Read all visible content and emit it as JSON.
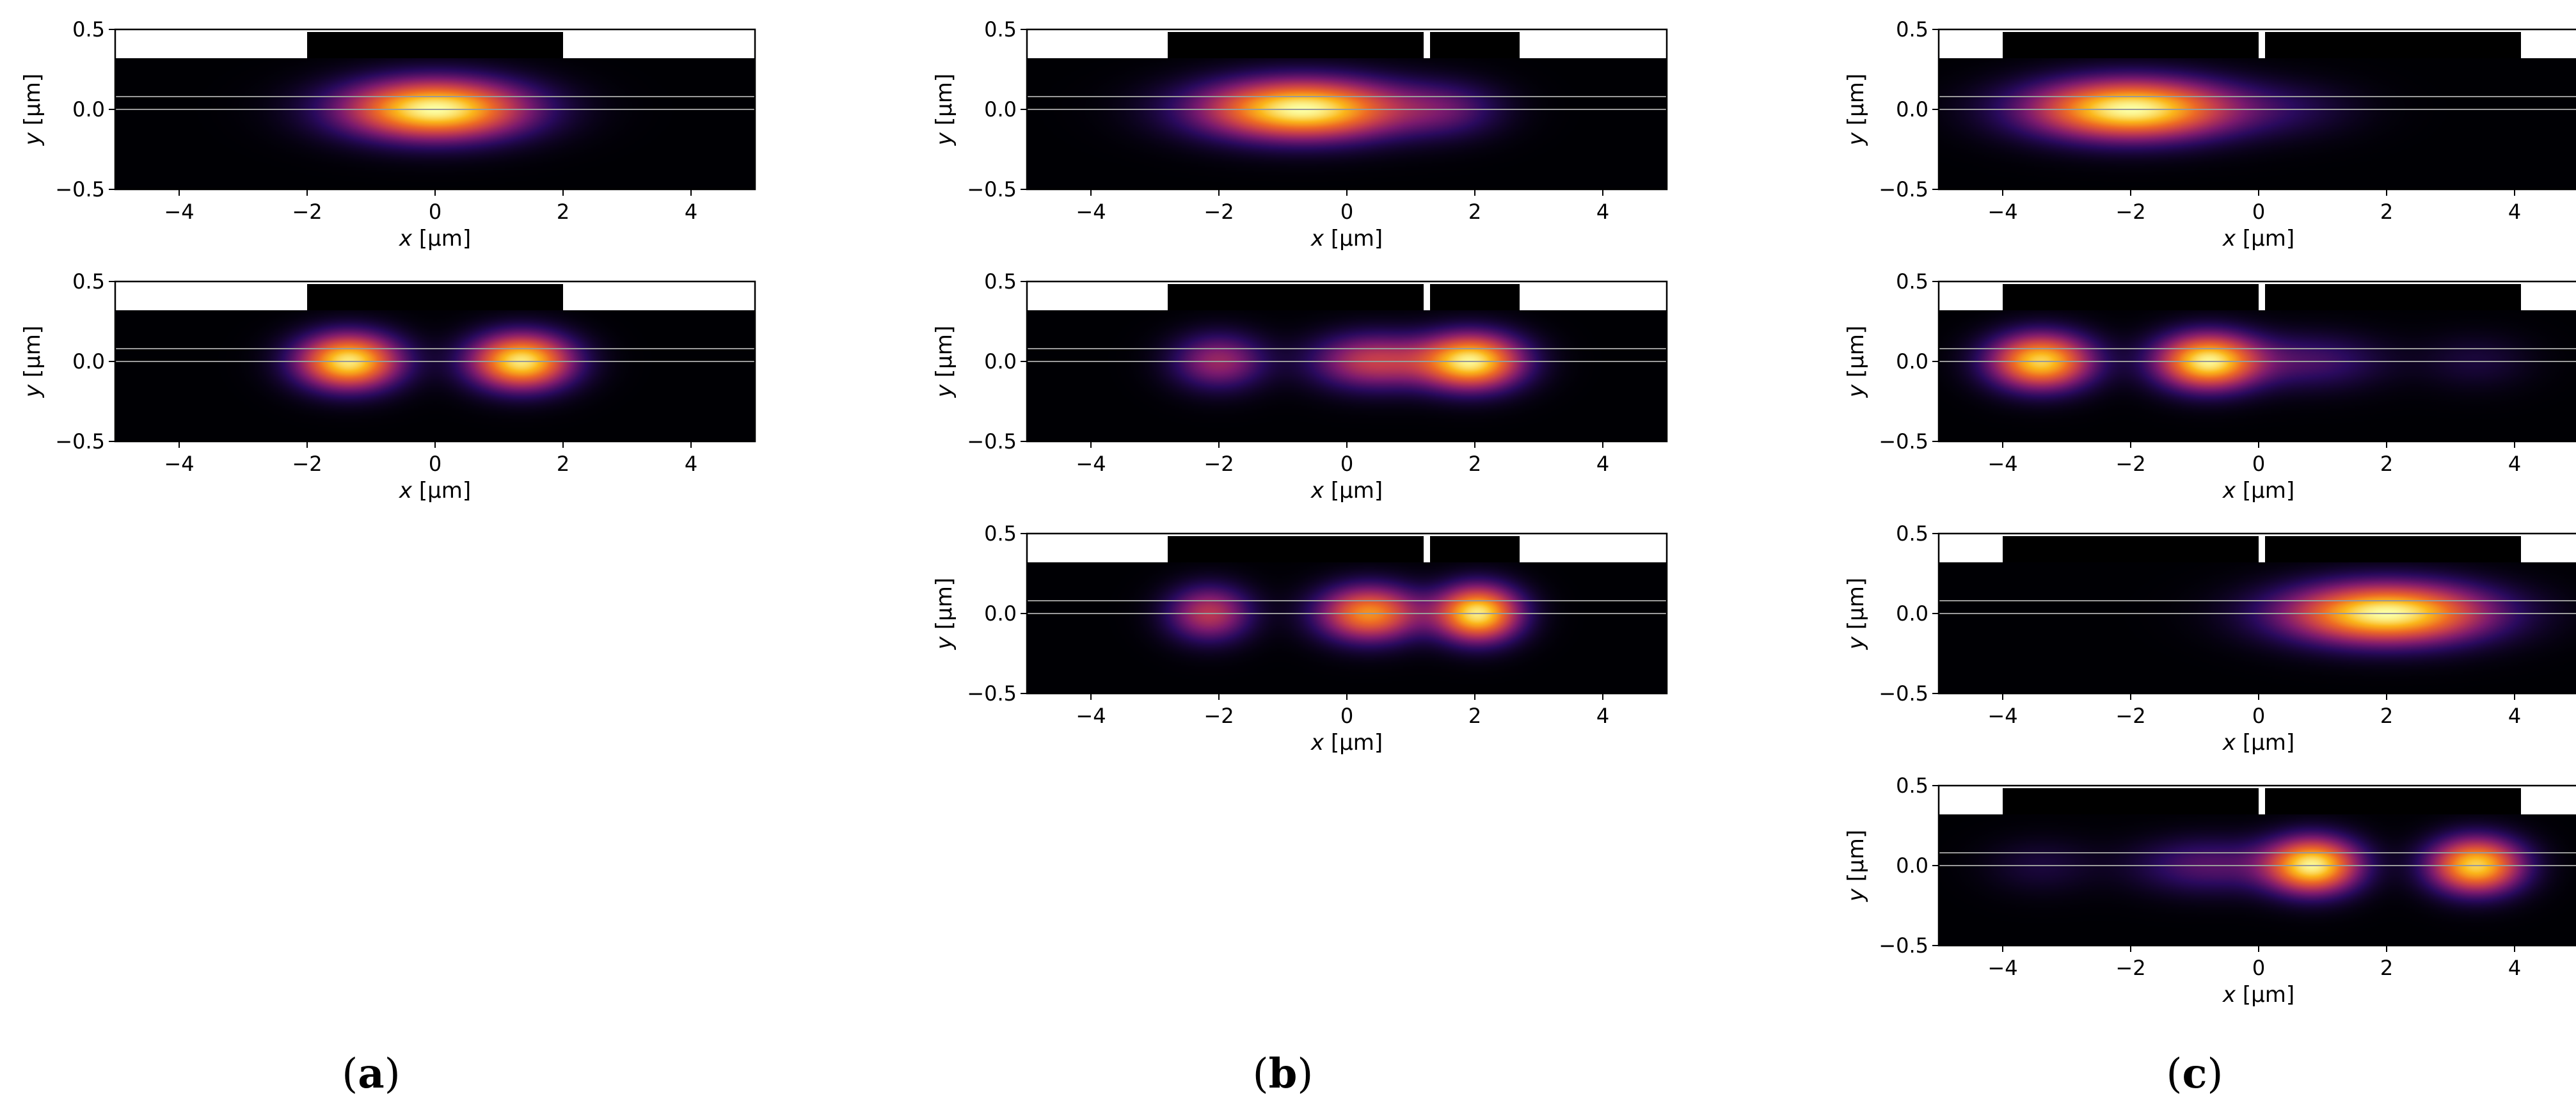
{
  "colors": {
    "background": "#000000",
    "cladding": "#ffffff",
    "guide_line": "#9a9a9a",
    "colormap": [
      "#000004",
      "#2a0a5e",
      "#7b1a6e",
      "#c13a50",
      "#ed6925",
      "#fbb61a",
      "#fcffa4"
    ]
  },
  "axes": {
    "xlim": [
      -5,
      5
    ],
    "ylim": [
      -0.5,
      0.5
    ],
    "xticks": [
      -4,
      -2,
      0,
      2,
      4
    ],
    "xtick_labels": [
      "−4",
      "−2",
      "0",
      "2",
      "4"
    ],
    "yticks": [
      0.5,
      0.0,
      -0.5
    ],
    "ytick_labels": [
      "0.5",
      "0.0",
      "−0.5"
    ],
    "xlabel_var": "x",
    "xlabel_unit": " [µm]",
    "ylabel_var": "y",
    "ylabel_unit": " [µm]",
    "core_lines_y": [
      0.08,
      0.0
    ],
    "top_strip_bottom_y": 0.32
  },
  "panel_labels": [
    "(a)",
    "(b)",
    "(c)"
  ],
  "chart_data": [
    {
      "type": "heatmap",
      "panel": "a",
      "column": 0,
      "row": 0,
      "ridges": [
        [
          -2,
          2
        ]
      ],
      "spots": [
        {
          "x": 0,
          "y": 0,
          "amp": 1.0,
          "sx": 1.0,
          "sy": 0.13
        }
      ]
    },
    {
      "type": "heatmap",
      "panel": "a",
      "column": 0,
      "row": 1,
      "ridges": [
        [
          -2,
          2
        ]
      ],
      "spots": [
        {
          "x": -1.35,
          "y": 0,
          "amp": 0.95,
          "sx": 0.55,
          "sy": 0.12
        },
        {
          "x": 1.35,
          "y": 0,
          "amp": 0.95,
          "sx": 0.55,
          "sy": 0.12
        }
      ]
    },
    {
      "type": "heatmap",
      "panel": "b",
      "column": 1,
      "row": 0,
      "ridges": [
        [
          -2.8,
          1.2
        ],
        [
          1.3,
          2.7
        ]
      ],
      "spots": [
        {
          "x": -0.7,
          "y": 0,
          "amp": 1.0,
          "sx": 1.1,
          "sy": 0.13
        },
        {
          "x": 1.6,
          "y": 0,
          "amp": 0.2,
          "sx": 0.6,
          "sy": 0.12
        }
      ]
    },
    {
      "type": "heatmap",
      "panel": "b",
      "column": 1,
      "row": 1,
      "ridges": [
        [
          -2.8,
          1.2
        ],
        [
          1.3,
          2.7
        ]
      ],
      "spots": [
        {
          "x": -2.0,
          "y": 0,
          "amp": 0.4,
          "sx": 0.5,
          "sy": 0.12
        },
        {
          "x": 0.4,
          "y": 0,
          "amp": 0.5,
          "sx": 0.65,
          "sy": 0.12
        },
        {
          "x": 1.95,
          "y": 0,
          "amp": 0.95,
          "sx": 0.55,
          "sy": 0.12
        }
      ]
    },
    {
      "type": "heatmap",
      "panel": "b",
      "column": 1,
      "row": 2,
      "ridges": [
        [
          -2.8,
          1.2
        ],
        [
          1.3,
          2.7
        ]
      ],
      "spots": [
        {
          "x": -2.15,
          "y": 0,
          "amp": 0.48,
          "sx": 0.45,
          "sy": 0.12
        },
        {
          "x": 0.35,
          "y": 0,
          "amp": 0.75,
          "sx": 0.55,
          "sy": 0.12
        },
        {
          "x": 2.05,
          "y": 0,
          "amp": 0.95,
          "sx": 0.45,
          "sy": 0.12
        }
      ]
    },
    {
      "type": "heatmap",
      "panel": "c",
      "column": 2,
      "row": 0,
      "ridges": [
        [
          -4,
          0
        ],
        [
          0.1,
          4.1
        ]
      ],
      "spots": [
        {
          "x": -2.0,
          "y": 0,
          "amp": 1.0,
          "sx": 1.1,
          "sy": 0.13
        },
        {
          "x": 0.5,
          "y": 0,
          "amp": 0.1,
          "sx": 0.8,
          "sy": 0.12
        }
      ]
    },
    {
      "type": "heatmap",
      "panel": "c",
      "column": 2,
      "row": 1,
      "ridges": [
        [
          -4,
          0
        ],
        [
          0.1,
          4.1
        ]
      ],
      "spots": [
        {
          "x": -3.4,
          "y": 0,
          "amp": 0.9,
          "sx": 0.55,
          "sy": 0.12
        },
        {
          "x": -0.8,
          "y": 0,
          "amp": 0.95,
          "sx": 0.55,
          "sy": 0.12
        },
        {
          "x": 0.8,
          "y": 0,
          "amp": 0.22,
          "sx": 0.8,
          "sy": 0.12
        },
        {
          "x": 3.4,
          "y": 0,
          "amp": 0.1,
          "sx": 0.6,
          "sy": 0.12
        }
      ]
    },
    {
      "type": "heatmap",
      "panel": "c",
      "column": 2,
      "row": 2,
      "ridges": [
        [
          -4,
          0
        ],
        [
          0.1,
          4.1
        ]
      ],
      "spots": [
        {
          "x": 2.0,
          "y": 0,
          "amp": 1.0,
          "sx": 1.1,
          "sy": 0.13
        }
      ]
    },
    {
      "type": "heatmap",
      "panel": "c",
      "column": 2,
      "row": 3,
      "ridges": [
        [
          -4,
          0
        ],
        [
          0.1,
          4.1
        ]
      ],
      "spots": [
        {
          "x": -0.8,
          "y": 0,
          "amp": 0.25,
          "sx": 0.8,
          "sy": 0.12
        },
        {
          "x": 0.85,
          "y": 0,
          "amp": 0.95,
          "sx": 0.5,
          "sy": 0.12
        },
        {
          "x": 3.4,
          "y": 0,
          "amp": 0.9,
          "sx": 0.5,
          "sy": 0.12
        },
        {
          "x": -3.4,
          "y": 0,
          "amp": 0.1,
          "sx": 0.6,
          "sy": 0.12
        }
      ]
    }
  ]
}
